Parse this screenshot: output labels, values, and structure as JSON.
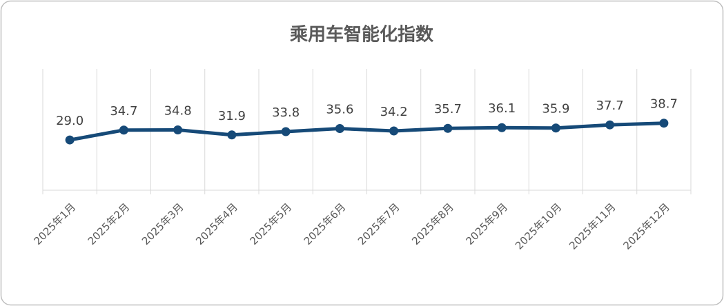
{
  "chart_data": {
    "type": "line",
    "title": "乘用车智能化指数",
    "categories": [
      "2025年1月",
      "2025年2月",
      "2025年3月",
      "2025年4月",
      "2025年5月",
      "2025年6月",
      "2025年7月",
      "2025年8月",
      "2025年9月",
      "2025年10月",
      "2025年11月",
      "2025年12月"
    ],
    "series": [
      {
        "color": "#164a78",
        "values": [
          29,
          34.7,
          34.8,
          31.9,
          33.8,
          35.6,
          34.2,
          35.7,
          36.1,
          35.9,
          37.7,
          38.7
        ],
        "value_labels": [
          "29.0",
          "34.7",
          "34.8",
          "31.9",
          "33.8",
          "35.6",
          "34.2",
          "35.7",
          "36.1",
          "35.9",
          "37.7",
          "38.7"
        ]
      }
    ],
    "ylim": [
      0,
      70
    ],
    "grid": true
  }
}
